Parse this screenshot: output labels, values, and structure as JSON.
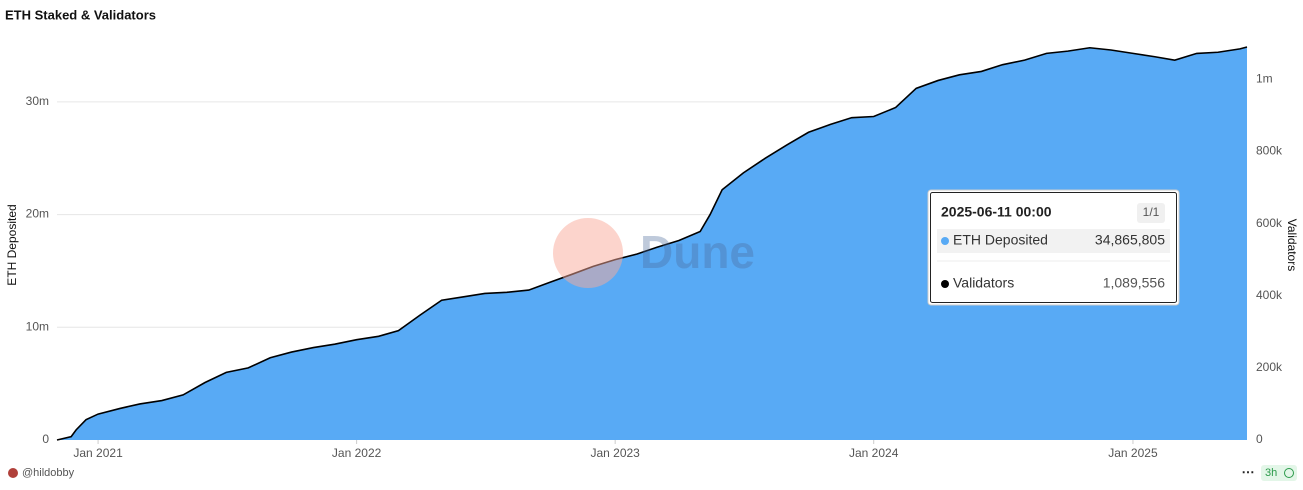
{
  "chart_data": {
    "type": "area-line",
    "title": "ETH Staked & Validators",
    "y_label": "ETH Deposited",
    "y2_label": "Validators",
    "x": [
      "2020-11-04",
      "2020-11-24",
      "2020-12-01",
      "2020-12-15",
      "2021-01-01",
      "2021-02-01",
      "2021-03-01",
      "2021-04-01",
      "2021-05-01",
      "2021-06-01",
      "2021-07-01",
      "2021-08-01",
      "2021-09-01",
      "2021-10-01",
      "2021-11-01",
      "2021-12-01",
      "2022-01-01",
      "2022-02-01",
      "2022-03-01",
      "2022-04-01",
      "2022-05-01",
      "2022-06-01",
      "2022-07-01",
      "2022-08-01",
      "2022-09-01",
      "2022-10-01",
      "2022-11-01",
      "2022-12-01",
      "2023-01-01",
      "2023-02-01",
      "2023-03-01",
      "2023-04-01",
      "2023-05-01",
      "2023-05-15",
      "2023-06-01",
      "2023-07-01",
      "2023-08-01",
      "2023-09-01",
      "2023-10-01",
      "2023-11-01",
      "2023-12-01",
      "2024-01-01",
      "2024-02-01",
      "2024-03-01",
      "2024-04-01",
      "2024-05-01",
      "2024-06-01",
      "2024-07-01",
      "2024-08-01",
      "2024-09-01",
      "2024-10-01",
      "2024-11-01",
      "2024-12-01",
      "2025-01-01",
      "2025-02-01",
      "2025-03-01",
      "2025-04-01",
      "2025-05-01",
      "2025-06-01",
      "2025-06-11"
    ],
    "series": [
      {
        "name": "ETH Deposited",
        "color": "#58aaf5",
        "axis": "y",
        "values": [
          0,
          300000,
          900000,
          1800000,
          2300000,
          2800000,
          3200000,
          3500000,
          4000000,
          5100000,
          6000000,
          6400000,
          7300000,
          7800000,
          8200000,
          8500000,
          8900000,
          9200000,
          9700000,
          11100000,
          12400000,
          12700000,
          13000000,
          13100000,
          13300000,
          14000000,
          14700000,
          15400000,
          16000000,
          16500000,
          17100000,
          17700000,
          18500000,
          20000000,
          22200000,
          23700000,
          25000000,
          26200000,
          27300000,
          28000000,
          28600000,
          28700000,
          29500000,
          31200000,
          31900000,
          32400000,
          32700000,
          33300000,
          33700000,
          34300000,
          34500000,
          34800000,
          34600000,
          34300000,
          34000000,
          33700000,
          34300000,
          34400000,
          34700000,
          34865805
        ]
      },
      {
        "name": "Validators",
        "color": "#000000",
        "axis": "y2",
        "values": [
          0,
          9375,
          28125,
          56250,
          71875,
          87500,
          100000,
          109375,
          125000,
          159375,
          187500,
          200000,
          228125,
          243750,
          256250,
          265625,
          278125,
          287500,
          303125,
          346875,
          387500,
          396875,
          406250,
          409375,
          415625,
          437500,
          459375,
          481250,
          500000,
          515625,
          534375,
          553125,
          578125,
          625000,
          693750,
          740625,
          781250,
          818750,
          853125,
          875000,
          893750,
          896875,
          921875,
          975000,
          996875,
          1012500,
          1021875,
          1040625,
          1053125,
          1071875,
          1078125,
          1087500,
          1081250,
          1071875,
          1062500,
          1053125,
          1071875,
          1075000,
          1084375,
          1089556
        ]
      }
    ],
    "xlim": [
      "2020-11-04",
      "2025-06-11"
    ],
    "xticks": [
      {
        "value": "2021-01-01",
        "label": "Jan 2021"
      },
      {
        "value": "2022-01-01",
        "label": "Jan 2022"
      },
      {
        "value": "2023-01-01",
        "label": "Jan 2023"
      },
      {
        "value": "2024-01-01",
        "label": "Jan 2024"
      },
      {
        "value": "2025-01-01",
        "label": "Jan 2025"
      }
    ],
    "ylim": [
      0,
      35000000
    ],
    "yticks": [
      0,
      {
        "value": 10000000,
        "label": "10m"
      },
      {
        "value": 20000000,
        "label": "20m"
      },
      {
        "value": 30000000,
        "label": "30m"
      }
    ],
    "y2lim": [
      0,
      1093750
    ],
    "y2ticks": [
      0,
      {
        "value": 200000,
        "label": "200k"
      },
      {
        "value": 400000,
        "label": "400k"
      },
      {
        "value": 600000,
        "label": "600k"
      },
      {
        "value": 800000,
        "label": "800k"
      },
      {
        "value": 1000000,
        "label": "1m"
      }
    ],
    "grid": true,
    "tooltip": {
      "title": "2025-06-11 00:00",
      "page": "1/1",
      "rows": [
        "34,865,805",
        "1,089,556"
      ]
    },
    "watermark": "Dune",
    "footer": {
      "author": "@hildobby",
      "menu": "⋯",
      "age": "3h"
    }
  }
}
